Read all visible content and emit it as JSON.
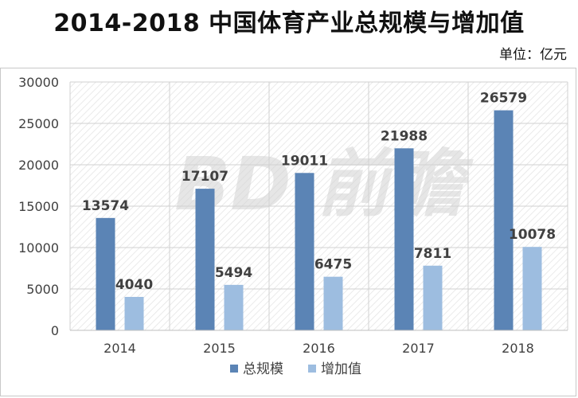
{
  "title": "2014-2018 中国体育产业总规模与增加值",
  "unit_label": "单位：亿元",
  "watermark": "BD 前瞻",
  "chart_data": {
    "type": "bar",
    "title": "2014-2018 中国体育产业总规模与增加值",
    "xlabel": "",
    "ylabel": "",
    "categories": [
      "2014",
      "2015",
      "2016",
      "2017",
      "2018"
    ],
    "series": [
      {
        "name": "总规模",
        "values": [
          13574,
          17107,
          19011,
          21988,
          26579
        ],
        "color": "#5b84b5"
      },
      {
        "name": "增加值",
        "values": [
          4040,
          5494,
          6475,
          7811,
          10078
        ],
        "color": "#9dbde0"
      }
    ],
    "ylim": [
      0,
      30000
    ],
    "yticks": [
      "0",
      "5000",
      "10000",
      "15000",
      "20000",
      "25000",
      "30000"
    ],
    "grid": true,
    "legend": "bottom-center",
    "data_labels": true,
    "background_pattern": "diagonal-hatch"
  }
}
